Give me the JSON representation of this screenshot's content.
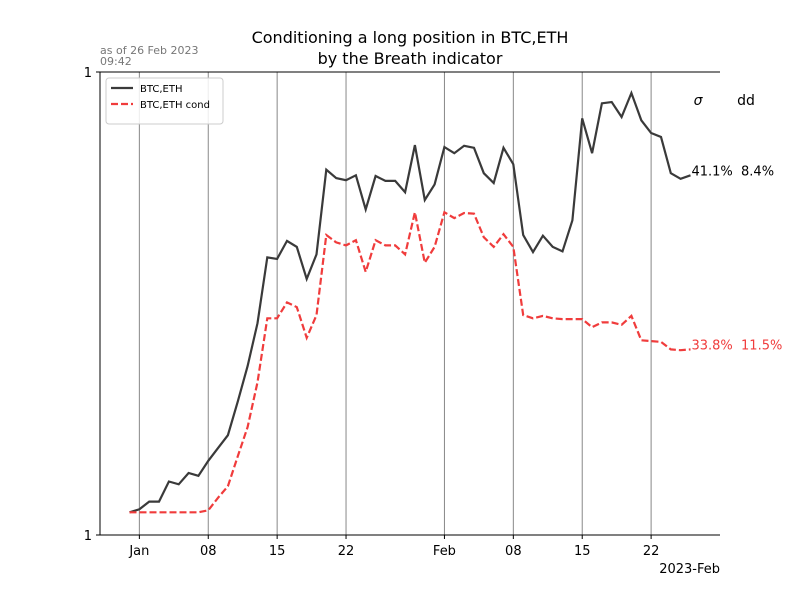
{
  "chart_data": {
    "type": "line",
    "title": [
      "Conditioning a long position in BTC,ETH",
      "by the Breath indicator"
    ],
    "subtitle": [
      "as of 26 Feb 2023",
      "09:42"
    ],
    "x": [
      "2022-12-31",
      "2023-01-01",
      "2023-01-02",
      "2023-01-03",
      "2023-01-04",
      "2023-01-05",
      "2023-01-06",
      "2023-01-07",
      "2023-01-08",
      "2023-01-09",
      "2023-01-10",
      "2023-01-11",
      "2023-01-12",
      "2023-01-13",
      "2023-01-14",
      "2023-01-15",
      "2023-01-16",
      "2023-01-17",
      "2023-01-18",
      "2023-01-19",
      "2023-01-20",
      "2023-01-21",
      "2023-01-22",
      "2023-01-23",
      "2023-01-24",
      "2023-01-25",
      "2023-01-26",
      "2023-01-27",
      "2023-01-28",
      "2023-01-29",
      "2023-01-30",
      "2023-01-31",
      "2023-02-01",
      "2023-02-02",
      "2023-02-03",
      "2023-02-04",
      "2023-02-05",
      "2023-02-06",
      "2023-02-07",
      "2023-02-08",
      "2023-02-09",
      "2023-02-10",
      "2023-02-11",
      "2023-02-12",
      "2023-02-13",
      "2023-02-14",
      "2023-02-15",
      "2023-02-16",
      "2023-02-17",
      "2023-02-18",
      "2023-02-19",
      "2023-02-20",
      "2023-02-21",
      "2023-02-22",
      "2023-02-23",
      "2023-02-24",
      "2023-02-25",
      "2023-02-26"
    ],
    "series": [
      {
        "name": "BTC,ETH",
        "color": "#3a3a3a",
        "dash": false,
        "annotation": "41.1%  8.4%",
        "values": [
          1.023,
          1.026,
          1.034,
          1.034,
          1.055,
          1.052,
          1.064,
          1.061,
          1.077,
          1.091,
          1.105,
          1.143,
          1.184,
          1.236,
          1.32,
          1.318,
          1.342,
          1.334,
          1.292,
          1.324,
          1.441,
          1.429,
          1.426,
          1.433,
          1.385,
          1.432,
          1.425,
          1.425,
          1.409,
          1.477,
          1.398,
          1.42,
          1.474,
          1.465,
          1.476,
          1.473,
          1.436,
          1.422,
          1.473,
          1.449,
          1.35,
          1.327,
          1.349,
          1.334,
          1.328,
          1.37,
          1.517,
          1.465,
          1.54,
          1.542,
          1.519,
          1.556,
          1.514,
          1.495,
          1.489,
          1.436,
          1.428,
          1.433
        ]
      },
      {
        "name": "BTC,ETH cond",
        "color": "#f03c3c",
        "dash": true,
        "annotation": "33.8%  11.5%",
        "values": [
          1.023,
          1.023,
          1.023,
          1.023,
          1.023,
          1.023,
          1.023,
          1.023,
          1.025,
          1.038,
          1.05,
          1.082,
          1.114,
          1.165,
          1.242,
          1.242,
          1.262,
          1.256,
          1.218,
          1.246,
          1.35,
          1.34,
          1.336,
          1.343,
          1.301,
          1.343,
          1.336,
          1.336,
          1.324,
          1.381,
          1.313,
          1.334,
          1.381,
          1.373,
          1.38,
          1.379,
          1.347,
          1.334,
          1.351,
          1.334,
          1.246,
          1.242,
          1.245,
          1.242,
          1.241,
          1.241,
          1.241,
          1.231,
          1.237,
          1.237,
          1.234,
          1.245,
          1.215,
          1.214,
          1.213,
          1.204,
          1.203,
          1.204
        ]
      }
    ],
    "stats_header": [
      "σ",
      "dd"
    ],
    "xlim": [
      "2022-12-28",
      "2023-03-01"
    ],
    "xticks": [
      {
        "value": "2023-01-01",
        "label": "Jan"
      },
      {
        "value": "2023-01-08",
        "label": "08"
      },
      {
        "value": "2023-01-15",
        "label": "15"
      },
      {
        "value": "2023-01-22",
        "label": "22"
      },
      {
        "value": "2023-02-01",
        "label": "Feb"
      },
      {
        "value": "2023-02-08",
        "label": "08"
      },
      {
        "value": "2023-02-15",
        "label": "15"
      },
      {
        "value": "2023-02-22",
        "label": "22"
      }
    ],
    "x_offset_label": "2023-Feb",
    "ylim": [
      1,
      1.589
    ],
    "yticks": [
      1,
      {
        "value": 1.589,
        "label": "1"
      }
    ],
    "log_scale_y": true,
    "grid_x": true,
    "legend": "upper-left"
  }
}
